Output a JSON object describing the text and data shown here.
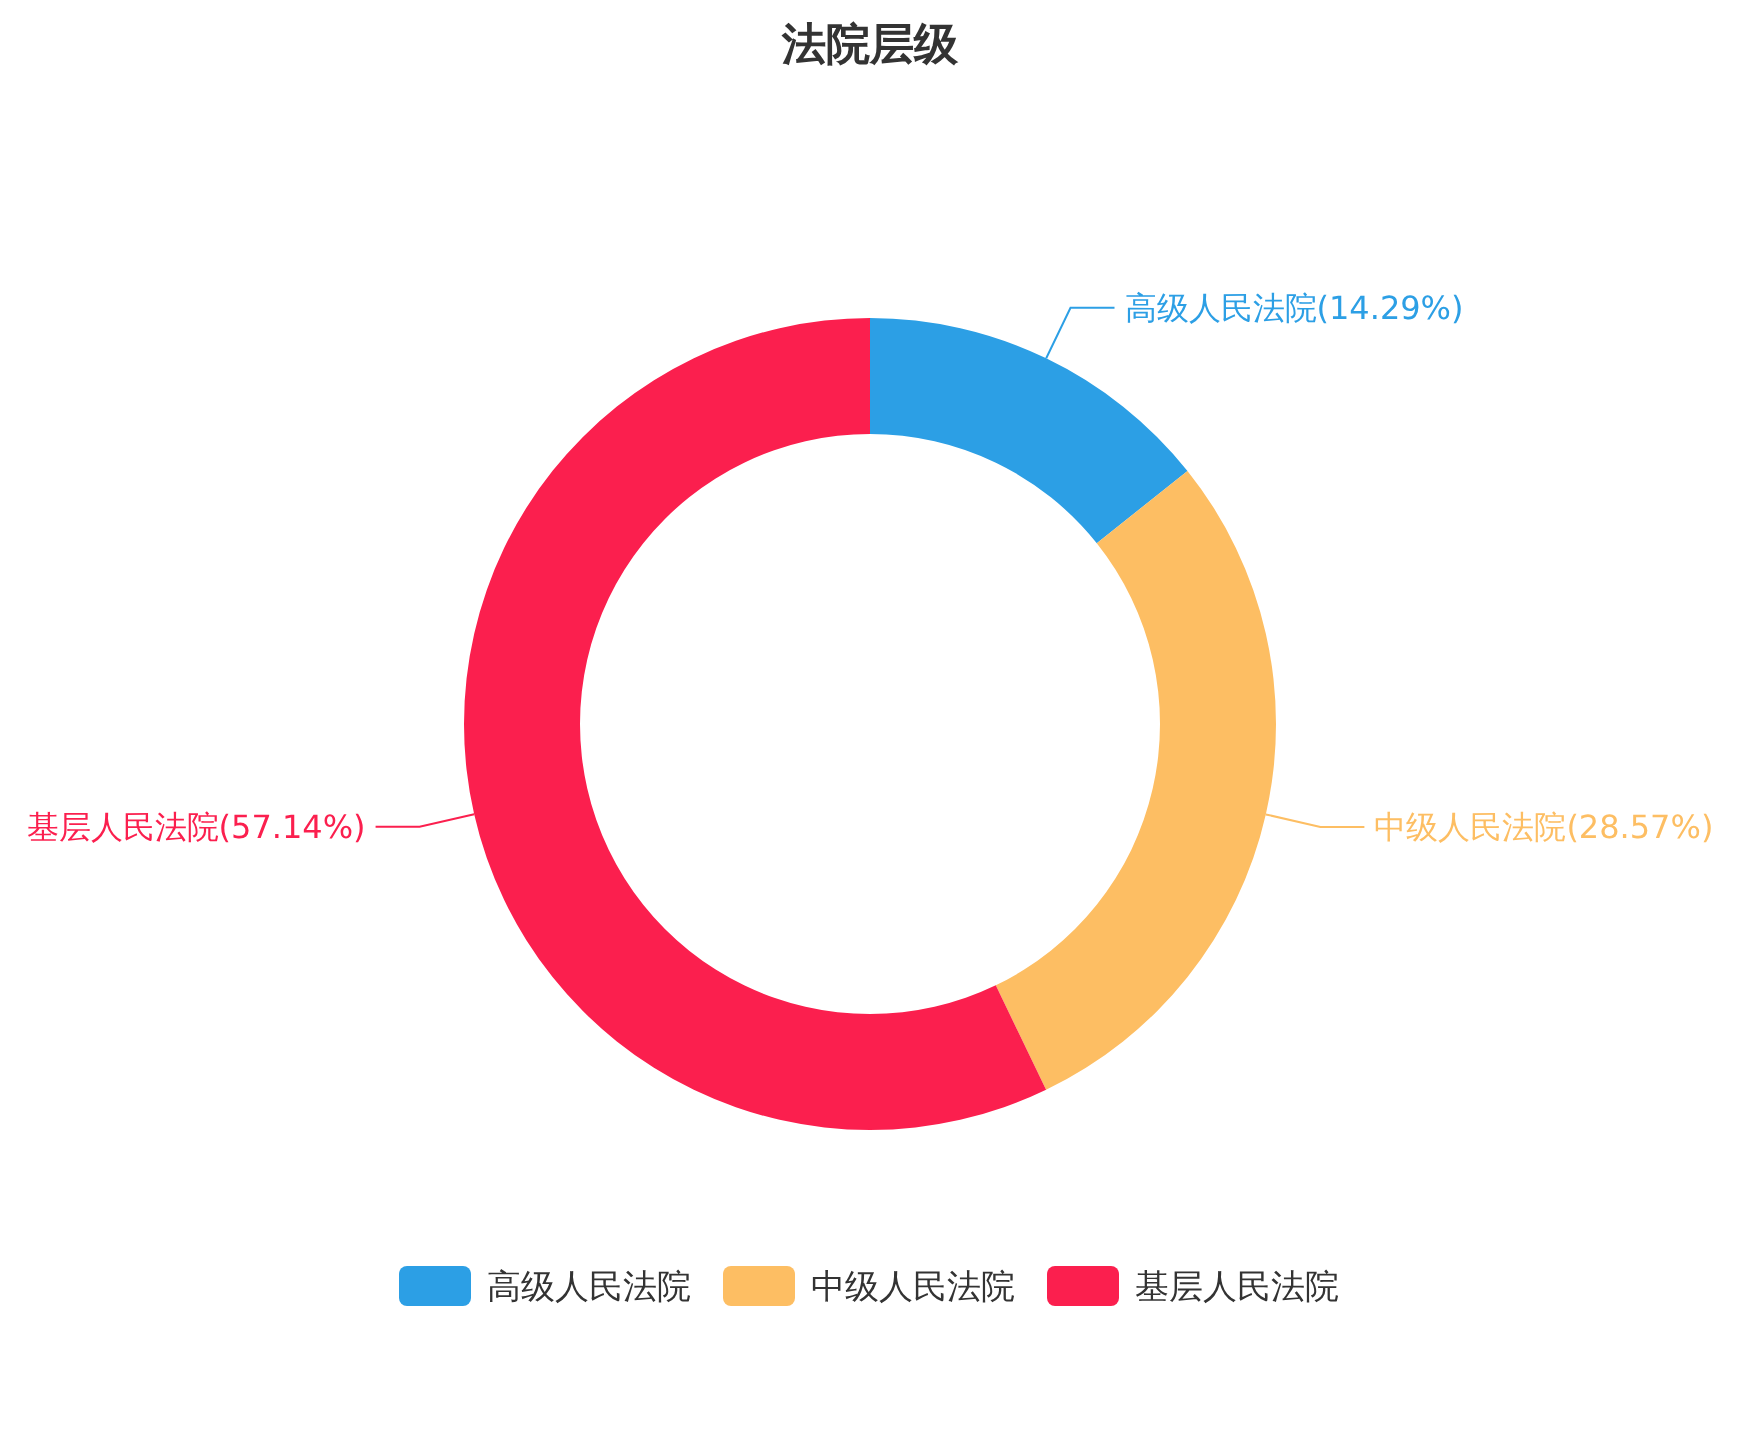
{
  "chart_data": {
    "type": "donut",
    "title": "法院层级",
    "categories": [
      "高级人民法院",
      "中级人民法院",
      "基层人民法院"
    ],
    "values": [
      14.29,
      28.57,
      57.14
    ],
    "colors": [
      "#2c9fe5",
      "#fdbe63",
      "#fb1f4e"
    ],
    "value_labels": [
      "高级人民法院(14.29%)",
      "中级人民法院(28.57%)",
      "基层人民法院(57.14%)"
    ],
    "legend": "bottom"
  }
}
